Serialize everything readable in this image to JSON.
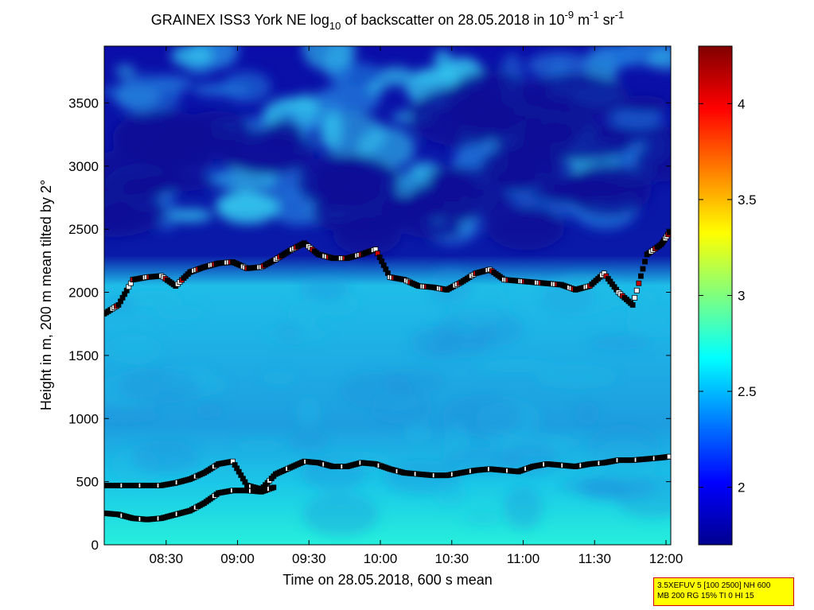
{
  "chart_data": {
    "type": "heatmap",
    "title": {
      "prefix": "GRAINEX ISS3 York NE log",
      "prefix_sub": "10",
      "middle": " of backscatter on 28.05.2018 in 10",
      "sup1": "-9",
      "unit1": " m",
      "sup2": "-1",
      "unit2": " sr",
      "sup3": "-1"
    },
    "xlabel": "Time on 28.05.2018, 600 s mean",
    "ylabel": "Height in m, 200 m mean tilted by 2°",
    "x_range": [
      "08:04",
      "12:02"
    ],
    "x_ticks": [
      "08:30",
      "09:00",
      "09:30",
      "10:00",
      "10:30",
      "11:00",
      "11:30",
      "12:00"
    ],
    "ylim": [
      0,
      3950
    ],
    "y_ticks": [
      0,
      500,
      1000,
      1500,
      2000,
      2500,
      3000,
      3500
    ],
    "colorbar": {
      "range": [
        1.7,
        4.3
      ],
      "ticks": [
        "2",
        "2.5",
        "3",
        "3.5",
        "4"
      ],
      "colormap": "jet"
    },
    "series": [
      {
        "marker": "square",
        "x": [
          "08:04",
          "08:10",
          "08:16",
          "08:22",
          "08:28",
          "08:34",
          "08:40",
          "08:46",
          "08:52",
          "08:58",
          "09:04",
          "09:10",
          "09:16",
          "09:22",
          "09:28",
          "09:34",
          "09:40",
          "09:46",
          "09:52",
          "09:58",
          "10:04",
          "10:10",
          "10:16",
          "10:22",
          "10:28",
          "10:34",
          "10:40",
          "10:46",
          "10:52",
          "10:58",
          "11:04",
          "11:10",
          "11:16",
          "11:22",
          "11:28",
          "11:34",
          "11:40",
          "11:46",
          "11:52",
          "11:58",
          "12:02"
        ],
        "y": [
          1830,
          1900,
          2100,
          2120,
          2130,
          2050,
          2160,
          2200,
          2230,
          2240,
          2190,
          2200,
          2260,
          2330,
          2390,
          2300,
          2270,
          2270,
          2300,
          2340,
          2120,
          2100,
          2050,
          2040,
          2020,
          2080,
          2150,
          2180,
          2100,
          2090,
          2080,
          2070,
          2060,
          2020,
          2050,
          2150,
          2000,
          1900,
          2300,
          2380,
          2490
        ]
      },
      {
        "marker": "square",
        "x": [
          "08:04",
          "08:10",
          "08:16",
          "08:22",
          "08:28",
          "08:34",
          "08:40",
          "08:46",
          "08:52",
          "08:58",
          "09:04",
          "09:10",
          "09:16",
          "09:22",
          "09:28",
          "09:34",
          "09:40",
          "09:46",
          "09:52",
          "09:58",
          "10:04",
          "10:10",
          "10:16",
          "10:22",
          "10:28",
          "10:34",
          "10:40",
          "10:46",
          "10:52",
          "10:58",
          "11:04",
          "11:10",
          "11:16",
          "11:22",
          "11:28",
          "11:34",
          "11:40",
          "11:46",
          "11:52",
          "11:58",
          "12:02"
        ],
        "y": [
          470,
          470,
          470,
          470,
          470,
          490,
          520,
          570,
          640,
          660,
          470,
          440,
          560,
          610,
          660,
          650,
          620,
          620,
          650,
          640,
          600,
          570,
          560,
          550,
          550,
          570,
          590,
          600,
          590,
          580,
          620,
          640,
          630,
          620,
          640,
          650,
          670,
          670,
          680,
          690,
          700
        ]
      },
      {
        "marker": "square",
        "x": [
          "08:04",
          "08:10",
          "08:16",
          "08:22",
          "08:28",
          "08:34",
          "08:40",
          "08:46",
          "08:52",
          "08:58",
          "09:04",
          "09:10",
          "09:16"
        ],
        "y": [
          250,
          240,
          210,
          200,
          210,
          240,
          270,
          330,
          410,
          430,
          430,
          420,
          460
        ]
      }
    ]
  },
  "infobox": {
    "line1": "3.5XEFUV 5 [100 2500] NH 600",
    "line2": "MB 200 RG 15% TI 0 HI 15"
  }
}
